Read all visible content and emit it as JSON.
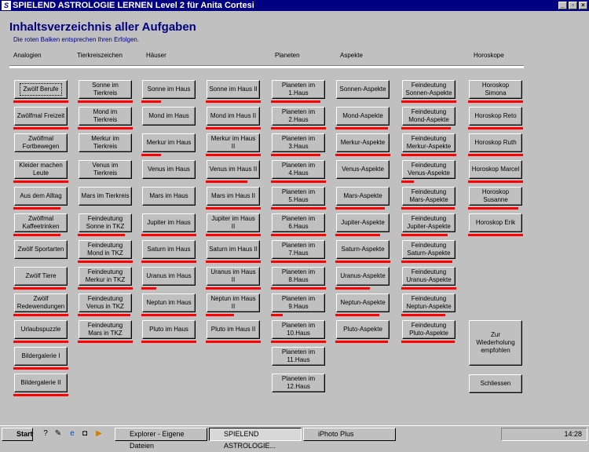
{
  "window": {
    "title": "SPIELEND ASTROLOGIE LERNEN Level 2 für Anita Cortesi",
    "minimize": "_",
    "restore": "▫",
    "close": "×"
  },
  "page": {
    "title": "Inhaltsverzeichnis aller Aufgaben",
    "subtitle": "Die roten Balken entsprechen Ihren Erfolgen."
  },
  "colors": {
    "progress": "#ff0000",
    "title": "#000080",
    "background": "#c0c0c0"
  },
  "columns": [
    {
      "header": "Analogien",
      "items": [
        {
          "label": "Zwölf Berufe",
          "progress": 1,
          "focused": true
        },
        {
          "label": "Zwölfmal Freizeit",
          "progress": 1
        },
        {
          "label": "Zwölfmal Fortbewegen",
          "progress": 0
        },
        {
          "label": "Kleider machen Leute",
          "progress": 1
        },
        {
          "label": "Aus dem Alltag",
          "progress": 0.85
        },
        {
          "label": "Zwölfmal Kaffeetrinken",
          "progress": 0.85
        },
        {
          "label": "Zwölf Sportarten",
          "progress": 0
        },
        {
          "label": "Zwölf Tiere",
          "progress": 0.95
        },
        {
          "label": "Zwölf Redewendungen",
          "progress": 1
        },
        {
          "label": "Urlaubspuzzle",
          "progress": 1
        },
        {
          "label": "Bildergalerie I",
          "progress": 1
        },
        {
          "label": "Bildergalerie II",
          "progress": 1
        }
      ]
    },
    {
      "header": "Tierkreiszeichen",
      "items": [
        {
          "label": "Sonne im Tierkreis",
          "progress": 1
        },
        {
          "label": "Mond im Tierkreis",
          "progress": 1
        },
        {
          "label": "Merkur im Tierkreis",
          "progress": 0
        },
        {
          "label": "Venus im Tierkreis",
          "progress": 0
        },
        {
          "label": "Mars im Tierkreis",
          "progress": 0
        },
        {
          "label": "Feindeutung Sonne in TKZ",
          "progress": 0.85
        },
        {
          "label": "Feindeutung Mond in TKZ",
          "progress": 1
        },
        {
          "label": "Feindeutung Merkur in TKZ",
          "progress": 1
        },
        {
          "label": "Feindeutung Venus in TKZ",
          "progress": 0.95
        },
        {
          "label": "Feindeutung Mars in TKZ",
          "progress": 1
        }
      ]
    },
    {
      "header": "Häuser",
      "items": [
        {
          "label": "Sonne im Haus",
          "progress": 0.35
        },
        {
          "label": "Mond im Haus",
          "progress": 0
        },
        {
          "label": "Merkur im Haus",
          "progress": 0.35
        },
        {
          "label": "Venus im Haus",
          "progress": 0
        },
        {
          "label": "Mars im Haus",
          "progress": 0
        },
        {
          "label": "Jupiter im Haus",
          "progress": 1
        },
        {
          "label": "Saturn im Haus",
          "progress": 1
        },
        {
          "label": "Uranus im Haus",
          "progress": 0.27
        },
        {
          "label": "Neptun im Haus",
          "progress": 1
        },
        {
          "label": "Pluto im Haus",
          "progress": 1
        }
      ]
    },
    {
      "header": "",
      "items": [
        {
          "label": "Sonne im Haus II",
          "progress": 1
        },
        {
          "label": "Mond im Haus II",
          "progress": 1
        },
        {
          "label": "Merkur im Haus II",
          "progress": 1
        },
        {
          "label": "Venus im Haus II",
          "progress": 0.76
        },
        {
          "label": "Mars im Haus II",
          "progress": 1
        },
        {
          "label": "Jupiter im Haus II",
          "progress": 1
        },
        {
          "label": "Saturn im Haus II",
          "progress": 1
        },
        {
          "label": "Uranus im Haus II",
          "progress": 1
        },
        {
          "label": "Neptun im Haus II",
          "progress": 0.52
        },
        {
          "label": "Pluto im Haus II",
          "progress": 1
        }
      ]
    },
    {
      "header": "Planeten",
      "items": [
        {
          "label": "Planeten im 1.Haus",
          "progress": 0.9
        },
        {
          "label": "Planeten im 2.Haus",
          "progress": 1
        },
        {
          "label": "Planeten im 3.Haus",
          "progress": 0.9
        },
        {
          "label": "Planeten im 4.Haus",
          "progress": 1
        },
        {
          "label": "Planeten im 5.Haus",
          "progress": 1
        },
        {
          "label": "Planeten im 6.Haus",
          "progress": 1
        },
        {
          "label": "Planeten im 7.Haus",
          "progress": 1
        },
        {
          "label": "Planeten im 8.Haus",
          "progress": 1
        },
        {
          "label": "Planeten im 9.Haus",
          "progress": 0.22
        },
        {
          "label": "Planeten im 10.Haus",
          "progress": 1
        },
        {
          "label": "Planeten im 11.Haus",
          "progress": 0
        },
        {
          "label": "Planeten im 12.Haus",
          "progress": 0
        }
      ]
    },
    {
      "header": "Aspekte",
      "items": [
        {
          "label": "Sonnen-Aspekte",
          "progress": 0
        },
        {
          "label": "Mond-Aspekte",
          "progress": 0.95
        },
        {
          "label": "Merkur-Aspekte",
          "progress": 1
        },
        {
          "label": "Venus-Aspekte",
          "progress": 0
        },
        {
          "label": "Mars-Aspekte",
          "progress": 0.9
        },
        {
          "label": "Jupiter-Aspekte",
          "progress": 0.82
        },
        {
          "label": "Saturn-Aspekte",
          "progress": 1
        },
        {
          "label": "Uranus-Aspekte",
          "progress": 0.63
        },
        {
          "label": "Neptun-Aspekte",
          "progress": 0.8
        },
        {
          "label": "Pluto-Aspekte",
          "progress": 0.95
        }
      ]
    },
    {
      "header": "",
      "items": [
        {
          "label": "Feindeutung Sonnen-Aspekte",
          "progress": 1
        },
        {
          "label": "Feindeutung Mond-Aspekte",
          "progress": 0.9
        },
        {
          "label": "Feindeutung Merkur-Aspekte",
          "progress": 1
        },
        {
          "label": "Feindeutung Venus-Aspekte",
          "progress": 0.23
        },
        {
          "label": "Feindeutung Mars-Aspekte",
          "progress": 0.97
        },
        {
          "label": "Feindeutung Jupiter-Aspekte",
          "progress": 0.84
        },
        {
          "label": "Feindeutung Saturn-Aspekte",
          "progress": 0.93
        },
        {
          "label": "Feindeutung Uranus-Aspekte",
          "progress": 1
        },
        {
          "label": "Feindeutung Neptun-Aspekte",
          "progress": 0.8
        },
        {
          "label": "Feindeutung Pluto-Aspekte",
          "progress": 0.97
        }
      ]
    },
    {
      "header": "Horoskope",
      "items": [
        {
          "label": "Horoskop Simona",
          "progress": 1
        },
        {
          "label": "Horoskop Reto",
          "progress": 1
        },
        {
          "label": "Horoskop Ruth",
          "progress": 1
        },
        {
          "label": "Horoskop Marcel",
          "progress": 1
        },
        {
          "label": "Horoskop Susanne",
          "progress": 0.92
        },
        {
          "label": "Horoskop Erik",
          "progress": 1
        }
      ]
    }
  ],
  "actions": {
    "review": "Zur Wiederholung empfohlen",
    "close": "Schliessen"
  },
  "taskbar": {
    "start": "Start",
    "tasks": [
      "Explorer - Eigene Dateien",
      "SPIELEND ASTROLOGIE...",
      "iPhoto Plus"
    ],
    "active_task": 1,
    "clock": "14:28"
  }
}
